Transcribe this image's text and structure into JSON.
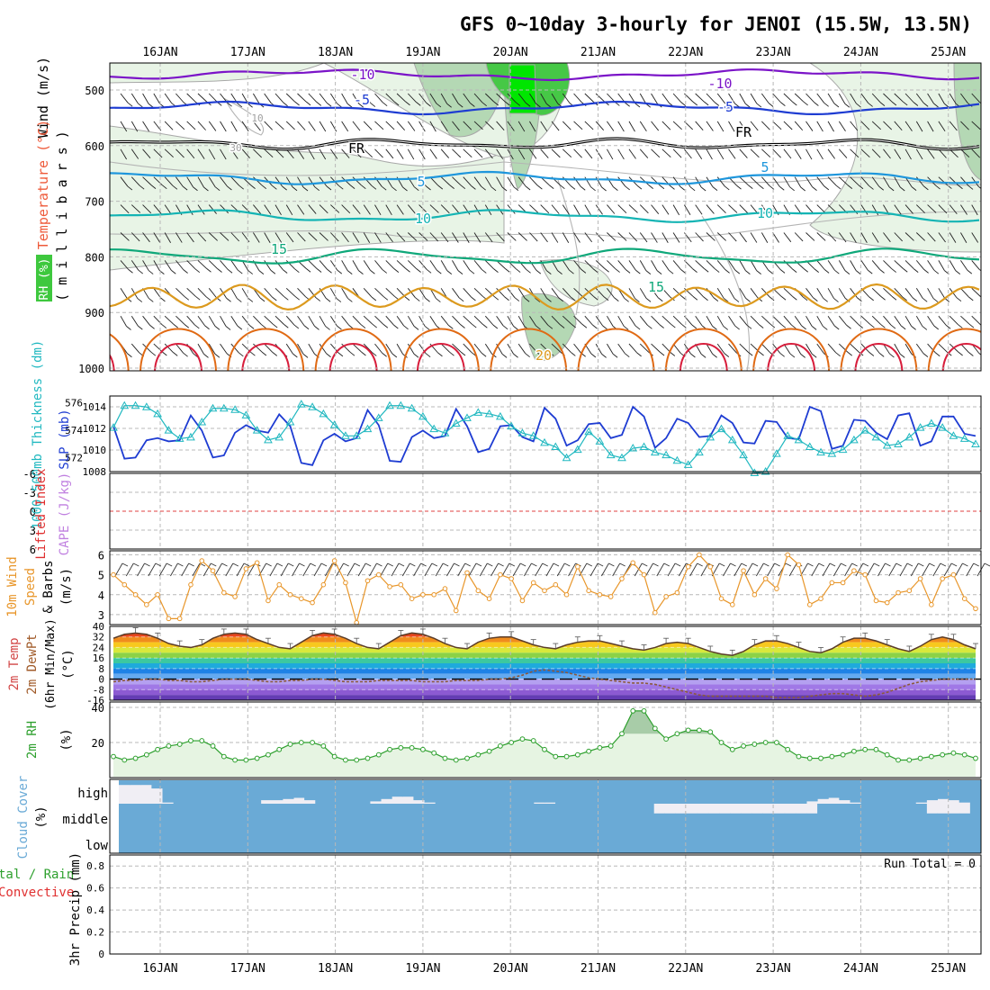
{
  "title": "GFS 0~10day 3-hourly for JENOI (15.5W, 13.5N)",
  "x_axis": {
    "dates": [
      "16JAN",
      "17JAN",
      "18JAN",
      "19JAN",
      "20JAN",
      "21JAN",
      "22JAN",
      "23JAN",
      "24JAN",
      "25JAN"
    ]
  },
  "panels": {
    "upper_air": {
      "label_wind": "Wind (m/s)",
      "label_temp": "Temperature (°C)",
      "label_rh": "RH (%)",
      "label_p": "( m i l l i b a r s )",
      "levels": [
        "500",
        "600",
        "700",
        "800",
        "900",
        "1000"
      ],
      "contour_labels": {
        "t_m10a": "-10",
        "t_m10b": "-10",
        "t_m5a": "-5",
        "t_m5b": "-5",
        "fr_a": "FR",
        "fr_b": "FR",
        "t_5a": "5",
        "t_5b": "5",
        "t_10a": "10",
        "t_10b": "10",
        "t_15a": "15",
        "t_15b": "15",
        "t_20": "20",
        "rh_10": "10",
        "rh_30": "30"
      },
      "colors": {
        "m10": "#7b14c8",
        "m5": "#1e3cd2",
        "fr": "#000000",
        "p5": "#1e96dc",
        "p10": "#14b4b4",
        "p15": "#0fa87a",
        "p20": "#dc9a1e",
        "p25": "#e06a14",
        "p30": "#d81e3c",
        "rh_light": "#e8f4e6",
        "rh_mid": "#b4d8b4",
        "rh_high": "#46c846",
        "rh_top": "#00e600"
      }
    },
    "thickness": {
      "label_thk": "1000-500mb Thickness (dm)",
      "label_slp": "SLP (mb)",
      "left_ticks": [
        "576",
        "574",
        "572"
      ],
      "right_ticks": [
        "1014",
        "1012",
        "1010",
        "1008"
      ],
      "colors": {
        "thk": "#20b8c0",
        "slp": "#1e3cd2"
      }
    },
    "stability": {
      "label_li": "Lifted Index",
      "label_cape": "CAPE (J/kg)",
      "ticks": [
        "-6",
        "-3",
        "0",
        "3",
        "6"
      ]
    },
    "wind10m": {
      "label_a": "10m Wind",
      "label_b": "Speed",
      "label_c": "& Barbs",
      "label_unit": "(m/s)",
      "ticks": [
        "6",
        "5",
        "4",
        "3"
      ],
      "color": "#e8962a"
    },
    "temp2m": {
      "label_a": "2m Temp",
      "label_b": "2m DewPt",
      "label_c": "(6hr Min/Max)",
      "label_unit": "(°C)",
      "ticks": [
        "40",
        "32",
        "24",
        "16",
        "8",
        "0",
        "-8",
        "-16"
      ]
    },
    "rh2m": {
      "label": "2m RH",
      "label_unit": "(%)",
      "ticks": [
        "40",
        "20"
      ],
      "color": "#2ea02e"
    },
    "cloud": {
      "label": "Cloud Cover",
      "label_unit": "(%)",
      "rows": [
        "high",
        "middle",
        "low"
      ],
      "color": "#6aaad6"
    },
    "precip": {
      "label_a": "3hr Precip (mm)",
      "label_b": "tal / Rain",
      "label_c": "Convective",
      "run_total": "Run Total = 0",
      "ticks": [
        "0.8",
        "0.6",
        "0.4",
        "0.2",
        "0"
      ]
    }
  },
  "chart_data": {
    "type": "line",
    "x": [
      "15JAN 12Z",
      "15JAN 15Z",
      "15JAN 18Z",
      "15JAN 21Z",
      "16JAN 00Z",
      "16JAN 03Z",
      "16JAN 06Z",
      "16JAN 09Z",
      "16JAN 12Z",
      "16JAN 15Z",
      "16JAN 18Z",
      "16JAN 21Z",
      "17JAN 00Z",
      "17JAN 03Z",
      "17JAN 06Z",
      "17JAN 09Z",
      "17JAN 12Z",
      "17JAN 15Z",
      "17JAN 18Z",
      "17JAN 21Z",
      "18JAN 00Z",
      "18JAN 03Z",
      "18JAN 06Z",
      "18JAN 09Z",
      "18JAN 12Z",
      "18JAN 15Z",
      "18JAN 18Z",
      "18JAN 21Z",
      "19JAN 00Z",
      "19JAN 03Z",
      "19JAN 06Z",
      "19JAN 09Z",
      "19JAN 12Z",
      "19JAN 15Z",
      "19JAN 18Z",
      "19JAN 21Z",
      "20JAN 00Z",
      "20JAN 03Z",
      "20JAN 06Z",
      "20JAN 09Z",
      "20JAN 12Z",
      "20JAN 15Z",
      "20JAN 18Z",
      "20JAN 21Z",
      "21JAN 00Z",
      "21JAN 03Z",
      "21JAN 06Z",
      "21JAN 09Z",
      "21JAN 12Z",
      "21JAN 15Z",
      "21JAN 18Z",
      "21JAN 21Z",
      "22JAN 00Z",
      "22JAN 03Z",
      "22JAN 06Z",
      "22JAN 09Z",
      "22JAN 12Z",
      "22JAN 15Z",
      "22JAN 18Z",
      "22JAN 21Z",
      "23JAN 00Z",
      "23JAN 03Z",
      "23JAN 06Z",
      "23JAN 09Z",
      "23JAN 12Z",
      "23JAN 15Z",
      "23JAN 18Z",
      "23JAN 21Z",
      "24JAN 00Z",
      "24JAN 03Z",
      "24JAN 06Z",
      "24JAN 09Z",
      "24JAN 12Z",
      "24JAN 15Z",
      "24JAN 18Z",
      "24JAN 21Z",
      "25JAN 00Z",
      "25JAN 03Z",
      "25JAN 06Z"
    ],
    "series": [
      {
        "name": "SLP (mb)",
        "values": [
          1012.2,
          1009.2,
          1009.3,
          1010.9,
          1011.1,
          1010.8,
          1010.9,
          1013.2,
          1011.8,
          1009.3,
          1009.5,
          1011.6,
          1012.3,
          1011.8,
          1011.6,
          1013.3,
          1012.2,
          1008.8,
          1008.6,
          1010.9,
          1011.5,
          1010.8,
          1011.1,
          1013.7,
          1012.3,
          1009.0,
          1008.9,
          1011.2,
          1011.8,
          1011.1,
          1011.3,
          1013.8,
          1012.2,
          1009.8,
          1010.1,
          1012.2,
          1012.3,
          1011.2,
          1010.8,
          1013.9,
          1012.9,
          1010.4,
          1010.9,
          1012.4,
          1012.5,
          1011.1,
          1011.4,
          1014.0,
          1013.1,
          1010.2,
          1011.1,
          1012.9,
          1012.5,
          1011.2,
          1011.3,
          1013.2,
          1012.5,
          1010.7,
          1010.6,
          1012.7,
          1012.6,
          1011.1,
          1011.0,
          1014.0,
          1013.6,
          1010.1,
          1010.4,
          1012.8,
          1012.7,
          1011.6,
          1011.0,
          1013.2,
          1013.4,
          1010.4,
          1010.8,
          1013.1,
          1013.1,
          1011.5,
          1011.3
        ]
      },
      {
        "name": "1000-500mb Thickness (dm)",
        "values": [
          574.2,
          575.8,
          575.8,
          575.7,
          575.2,
          574.0,
          573.4,
          573.5,
          574.6,
          575.6,
          575.6,
          575.5,
          575.1,
          574.0,
          573.3,
          573.5,
          574.6,
          575.9,
          575.7,
          575.2,
          574.4,
          573.6,
          573.6,
          574.1,
          574.9,
          575.8,
          575.8,
          575.6,
          575.0,
          574.1,
          573.8,
          574.5,
          574.9,
          575.3,
          575.2,
          575.0,
          574.3,
          573.8,
          573.6,
          573.1,
          572.8,
          572.0,
          572.6,
          573.9,
          573.2,
          572.2,
          572.0,
          572.7,
          572.8,
          572.4,
          572.2,
          571.8,
          571.5,
          572.4,
          573.5,
          574.1,
          573.3,
          572.2,
          570.9,
          571.0,
          572.3,
          573.6,
          573.3,
          572.8,
          572.4,
          572.3,
          572.6,
          573.3,
          574.0,
          573.5,
          572.9,
          573.0,
          573.5,
          574.2,
          574.5,
          574.2,
          573.6,
          573.4,
          573.0
        ]
      },
      {
        "name": "10m Wind Speed (m/s)",
        "values": [
          5.0,
          4.5,
          4.0,
          3.5,
          4.0,
          2.8,
          2.8,
          4.5,
          5.7,
          5.2,
          4.1,
          3.9,
          5.3,
          5.6,
          3.7,
          4.5,
          4.0,
          3.8,
          3.6,
          4.5,
          5.7,
          4.6,
          2.6,
          4.7,
          5.0,
          4.4,
          4.5,
          3.8,
          4.0,
          4.0,
          4.3,
          3.2,
          5.1,
          4.2,
          3.8,
          5.0,
          4.8,
          3.7,
          4.6,
          4.2,
          4.5,
          4.0,
          5.4,
          4.2,
          4.0,
          3.9,
          4.8,
          5.6,
          5.0,
          3.1,
          3.9,
          4.1,
          5.4,
          6.0,
          5.4,
          3.8,
          3.5,
          5.2,
          4.0,
          4.8,
          4.3,
          6.0,
          5.5,
          3.5,
          3.8,
          4.6,
          4.6,
          5.2,
          5.0,
          3.7,
          3.6,
          4.1,
          4.2,
          4.8,
          3.5,
          4.8,
          5.0,
          3.8,
          3.3
        ]
      },
      {
        "name": "2m Temp (°C)",
        "values": [
          31,
          34,
          35,
          34,
          31,
          27,
          25,
          24,
          26,
          31,
          34,
          35,
          34,
          30,
          27,
          24,
          23,
          28,
          33,
          35,
          34,
          31,
          27,
          24,
          23,
          28,
          33,
          35,
          34,
          31,
          27,
          24,
          23,
          28,
          31,
          32,
          32,
          29,
          26,
          24,
          23,
          26,
          28,
          29,
          29,
          27,
          25,
          23,
          22,
          24,
          27,
          28,
          27,
          24,
          21,
          19,
          18,
          21,
          26,
          29,
          29,
          27,
          24,
          21,
          20,
          23,
          28,
          31,
          31,
          29,
          26,
          23,
          21,
          25,
          30,
          32,
          30,
          26,
          23
        ]
      },
      {
        "name": "2m DewPt (°C)",
        "values": [
          -2,
          -1,
          -1,
          0,
          0,
          -1,
          -1,
          -2,
          -2,
          -1,
          0,
          0,
          0,
          -1,
          -2,
          -2,
          -1,
          -1,
          0,
          0,
          -1,
          -2,
          -2,
          -2,
          -1,
          -1,
          -1,
          -1,
          -2,
          -2,
          -2,
          -1,
          -1,
          -1,
          0,
          0,
          1,
          3,
          6,
          7,
          6,
          5,
          3,
          1,
          0,
          -1,
          -2,
          -3,
          -3,
          -4,
          -6,
          -8,
          -10,
          -12,
          -13,
          -13,
          -13,
          -13,
          -13,
          -13,
          -14,
          -14,
          -14,
          -13,
          -12,
          -11,
          -11,
          -12,
          -13,
          -12,
          -10,
          -7,
          -4,
          -2,
          -1,
          0,
          0,
          0,
          0
        ]
      },
      {
        "name": "2m RH (%)",
        "values": [
          12,
          10,
          11,
          13,
          16,
          18,
          19,
          21,
          21,
          18,
          12,
          10,
          10,
          11,
          13,
          16,
          19,
          20,
          20,
          18,
          12,
          10,
          10,
          11,
          13,
          16,
          17,
          17,
          16,
          14,
          11,
          10,
          11,
          13,
          15,
          18,
          20,
          22,
          21,
          16,
          12,
          12,
          13,
          15,
          17,
          18,
          25,
          38,
          38,
          28,
          22,
          25,
          27,
          27,
          26,
          20,
          16,
          18,
          19,
          20,
          20,
          16,
          12,
          11,
          11,
          12,
          13,
          15,
          16,
          16,
          13,
          10,
          10,
          11,
          12,
          13,
          14,
          13,
          11
        ]
      }
    ],
    "cloud_total_pct": [
      20,
      20,
      20,
      35,
      95,
      100,
      100,
      100,
      100,
      100,
      100,
      100,
      100,
      85,
      85,
      80,
      75,
      85,
      100,
      100,
      100,
      100,
      100,
      90,
      80,
      70,
      70,
      85,
      95,
      100,
      100,
      100,
      100,
      100,
      100,
      100,
      100,
      100,
      95,
      95,
      100,
      100,
      100,
      100,
      100,
      100,
      100,
      100,
      100,
      100,
      100,
      100,
      100,
      100,
      100,
      100,
      100,
      100,
      100,
      100,
      100,
      100,
      100,
      90,
      80,
      75,
      85,
      95,
      100,
      100,
      100,
      100,
      100,
      95,
      85,
      80,
      85,
      95,
      100
    ],
    "precip_mm": 0,
    "ylim_pressure": [
      1000,
      460
    ],
    "ylim_slp": [
      1008,
      1015
    ],
    "ylim_thickness": [
      571,
      576.5
    ],
    "ylim_wind10m": [
      2.5,
      6.2
    ],
    "ylim_temp": [
      -16,
      40
    ],
    "ylim_rh": [
      0,
      40
    ],
    "ylim_precip": [
      0,
      0.9
    ]
  }
}
